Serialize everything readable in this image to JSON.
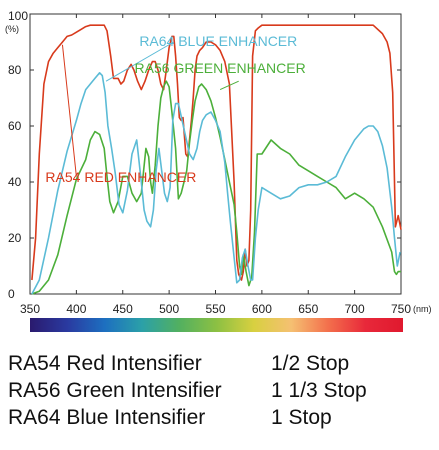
{
  "chart_data": {
    "type": "line",
    "title": "",
    "xlabel": "",
    "ylabel": "",
    "y_unit_label": "(%)",
    "x_unit_label": "(nm)",
    "xlim": [
      350,
      750
    ],
    "ylim": [
      0,
      100
    ],
    "x_ticks": [
      350,
      400,
      450,
      500,
      550,
      600,
      650,
      700,
      750
    ],
    "y_ticks": [
      0,
      20,
      40,
      60,
      80,
      100
    ],
    "grid": false,
    "series": [
      {
        "name": "RA54 RED ENHANCER",
        "color": "#d83a1c",
        "x": [
          352,
          356,
          360,
          365,
          370,
          375,
          380,
          385,
          390,
          395,
          400,
          405,
          410,
          415,
          420,
          425,
          430,
          433,
          437,
          440,
          445,
          448,
          451,
          455,
          459,
          462,
          466,
          470,
          474,
          478,
          482,
          485,
          488,
          491,
          494,
          497,
          500,
          503,
          505,
          507,
          509,
          511,
          513,
          515,
          518,
          520,
          522,
          524,
          526,
          528,
          530,
          533,
          536,
          540,
          545,
          550,
          555,
          560,
          565,
          570,
          573,
          575,
          578,
          580,
          582,
          584,
          586,
          588,
          590,
          593,
          596,
          600,
          610,
          620,
          640,
          660,
          680,
          700,
          710,
          720,
          730,
          735,
          738,
          741,
          744,
          747,
          750
        ],
        "y": [
          5,
          20,
          50,
          75,
          83,
          86,
          88,
          90,
          92,
          92.5,
          93.5,
          94.5,
          95.5,
          96,
          96,
          96,
          96,
          94,
          85,
          77,
          77,
          75,
          76,
          80,
          82,
          80,
          76,
          73,
          76,
          80,
          83,
          83,
          80,
          75,
          73,
          80,
          88,
          92,
          92,
          85,
          75,
          63,
          62,
          63,
          50,
          49,
          55,
          62,
          70,
          80,
          85,
          87,
          88,
          90,
          90,
          89,
          87,
          83,
          75,
          40,
          12,
          7,
          5,
          8,
          16,
          10,
          12,
          30,
          85,
          94,
          95,
          96,
          96,
          96,
          96,
          96,
          96,
          96,
          96,
          96,
          93,
          90,
          86,
          72,
          24,
          28,
          23
        ]
      },
      {
        "name": "RA56 GREEN ENHANCER",
        "color": "#4caf3a",
        "x": [
          352,
          360,
          370,
          380,
          390,
          400,
          410,
          415,
          420,
          425,
          430,
          433,
          436,
          440,
          445,
          450,
          455,
          460,
          465,
          470,
          475,
          478,
          480,
          482,
          485,
          488,
          491,
          494,
          497,
          500,
          503,
          507,
          510,
          513,
          516,
          519,
          522,
          525,
          528,
          532,
          535,
          540,
          545,
          550,
          555,
          560,
          565,
          570,
          573,
          576,
          578,
          580,
          583,
          586,
          589,
          592,
          595,
          600,
          610,
          620,
          630,
          640,
          650,
          660,
          670,
          680,
          690,
          700,
          710,
          720,
          730,
          740,
          743,
          745,
          747,
          750
        ],
        "y": [
          0,
          1,
          5,
          14,
          28,
          41,
          48,
          55,
          58,
          57,
          52,
          42,
          33,
          29,
          33,
          42,
          42,
          36,
          33,
          36,
          52,
          49,
          40,
          36,
          46,
          60,
          70,
          74,
          76,
          74,
          65,
          52,
          34,
          36,
          40,
          44,
          54,
          62,
          69,
          74,
          75,
          73,
          69,
          63,
          56,
          48,
          40,
          32,
          22,
          10,
          7,
          14,
          8,
          3,
          6,
          22,
          50,
          50,
          55,
          52,
          50,
          46,
          44,
          42,
          40,
          38,
          34,
          36,
          34,
          31,
          24,
          15,
          8,
          7,
          8,
          8
        ]
      },
      {
        "name": "RA64 BLUE ENHANCER",
        "color": "#5bbbd6",
        "x": [
          352,
          360,
          370,
          380,
          390,
          400,
          405,
          410,
          415,
          420,
          425,
          428,
          431,
          434,
          438,
          442,
          446,
          450,
          455,
          460,
          465,
          470,
          473,
          476,
          480,
          483,
          486,
          489,
          492,
          495,
          498,
          501,
          504,
          507,
          510,
          514,
          518,
          522,
          526,
          530,
          533,
          536,
          540,
          545,
          550,
          555,
          560,
          563,
          566,
          570,
          573,
          576,
          579,
          582,
          585,
          588,
          590,
          593,
          596,
          600,
          610,
          620,
          630,
          640,
          650,
          660,
          670,
          680,
          690,
          700,
          710,
          715,
          720,
          725,
          730,
          735,
          740,
          743,
          746,
          749
        ],
        "y": [
          0,
          5,
          20,
          37,
          51,
          62,
          68,
          73,
          75,
          77,
          79,
          78,
          72,
          60,
          52,
          43,
          32,
          29,
          37,
          50,
          55,
          40,
          30,
          26,
          24,
          30,
          44,
          52,
          44,
          36,
          33,
          38,
          62,
          68,
          68,
          62,
          56,
          50,
          48,
          52,
          58,
          62,
          64,
          65,
          62,
          58,
          47,
          36,
          26,
          13,
          4,
          5,
          13,
          16,
          10,
          5,
          5,
          20,
          30,
          38,
          36,
          34,
          35,
          38,
          39,
          39,
          40,
          42,
          49,
          55,
          59,
          60,
          60,
          58,
          53,
          45,
          31,
          20,
          10,
          15
        ]
      }
    ],
    "annotations": [
      {
        "text": "RA64 BLUE ENHANCER",
        "series": "RA64 BLUE ENHANCER"
      },
      {
        "text": "RA56 GREEN ENHANCER",
        "series": "RA56 GREEN ENHANCER"
      },
      {
        "text": "RA54 RED ENHANCER",
        "series": "RA54 RED ENHANCER"
      }
    ]
  },
  "spectrum_colors": [
    "#2a1a6e",
    "#2a3aa0",
    "#1d6fc0",
    "#2ba0a8",
    "#52b060",
    "#8cc043",
    "#d8d040",
    "#f5c072",
    "#f36f4c",
    "#e8283a",
    "#e0192e"
  ],
  "intensifiers": [
    {
      "name": "RA54 Red Intensifier",
      "stop": "1/2 Stop"
    },
    {
      "name": "RA56 Green Intensifier",
      "stop": "1 1/3 Stop"
    },
    {
      "name": "RA64 Blue Intensifier",
      "stop": "1 Stop"
    }
  ]
}
